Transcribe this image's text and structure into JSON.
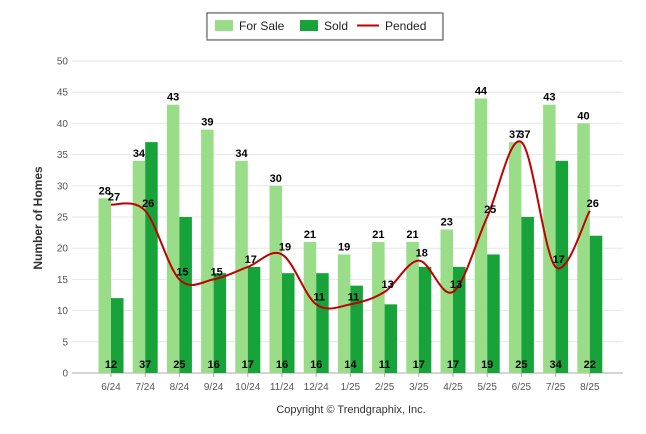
{
  "chart_data": {
    "type": "bar",
    "categories": [
      "6/24",
      "7/24",
      "8/24",
      "9/24",
      "10/24",
      "11/24",
      "12/24",
      "1/25",
      "2/25",
      "3/25",
      "4/25",
      "5/25",
      "6/25",
      "7/25",
      "8/25"
    ],
    "series": [
      {
        "name": "For Sale",
        "type": "bar",
        "color": "#99dd88",
        "values": [
          28,
          34,
          43,
          39,
          34,
          30,
          21,
          19,
          21,
          21,
          23,
          44,
          37,
          43,
          40
        ]
      },
      {
        "name": "Sold",
        "type": "bar",
        "color": "#18a33a",
        "values": [
          12,
          37,
          25,
          16,
          17,
          16,
          16,
          14,
          11,
          17,
          17,
          19,
          25,
          34,
          22
        ]
      },
      {
        "name": "Pended",
        "type": "line",
        "color": "#c00000",
        "values": [
          27,
          26,
          15,
          15,
          17,
          19,
          11,
          11,
          13,
          18,
          13,
          25,
          37,
          17,
          26
        ]
      }
    ],
    "ylabel": "Number of Homes",
    "ylim": [
      0,
      50
    ],
    "yticks": [
      0,
      5,
      10,
      15,
      20,
      25,
      30,
      35,
      40,
      45,
      50
    ],
    "grid": true,
    "legend_position": "top-center"
  },
  "footer": "Copyright © Trendgraphix, Inc."
}
